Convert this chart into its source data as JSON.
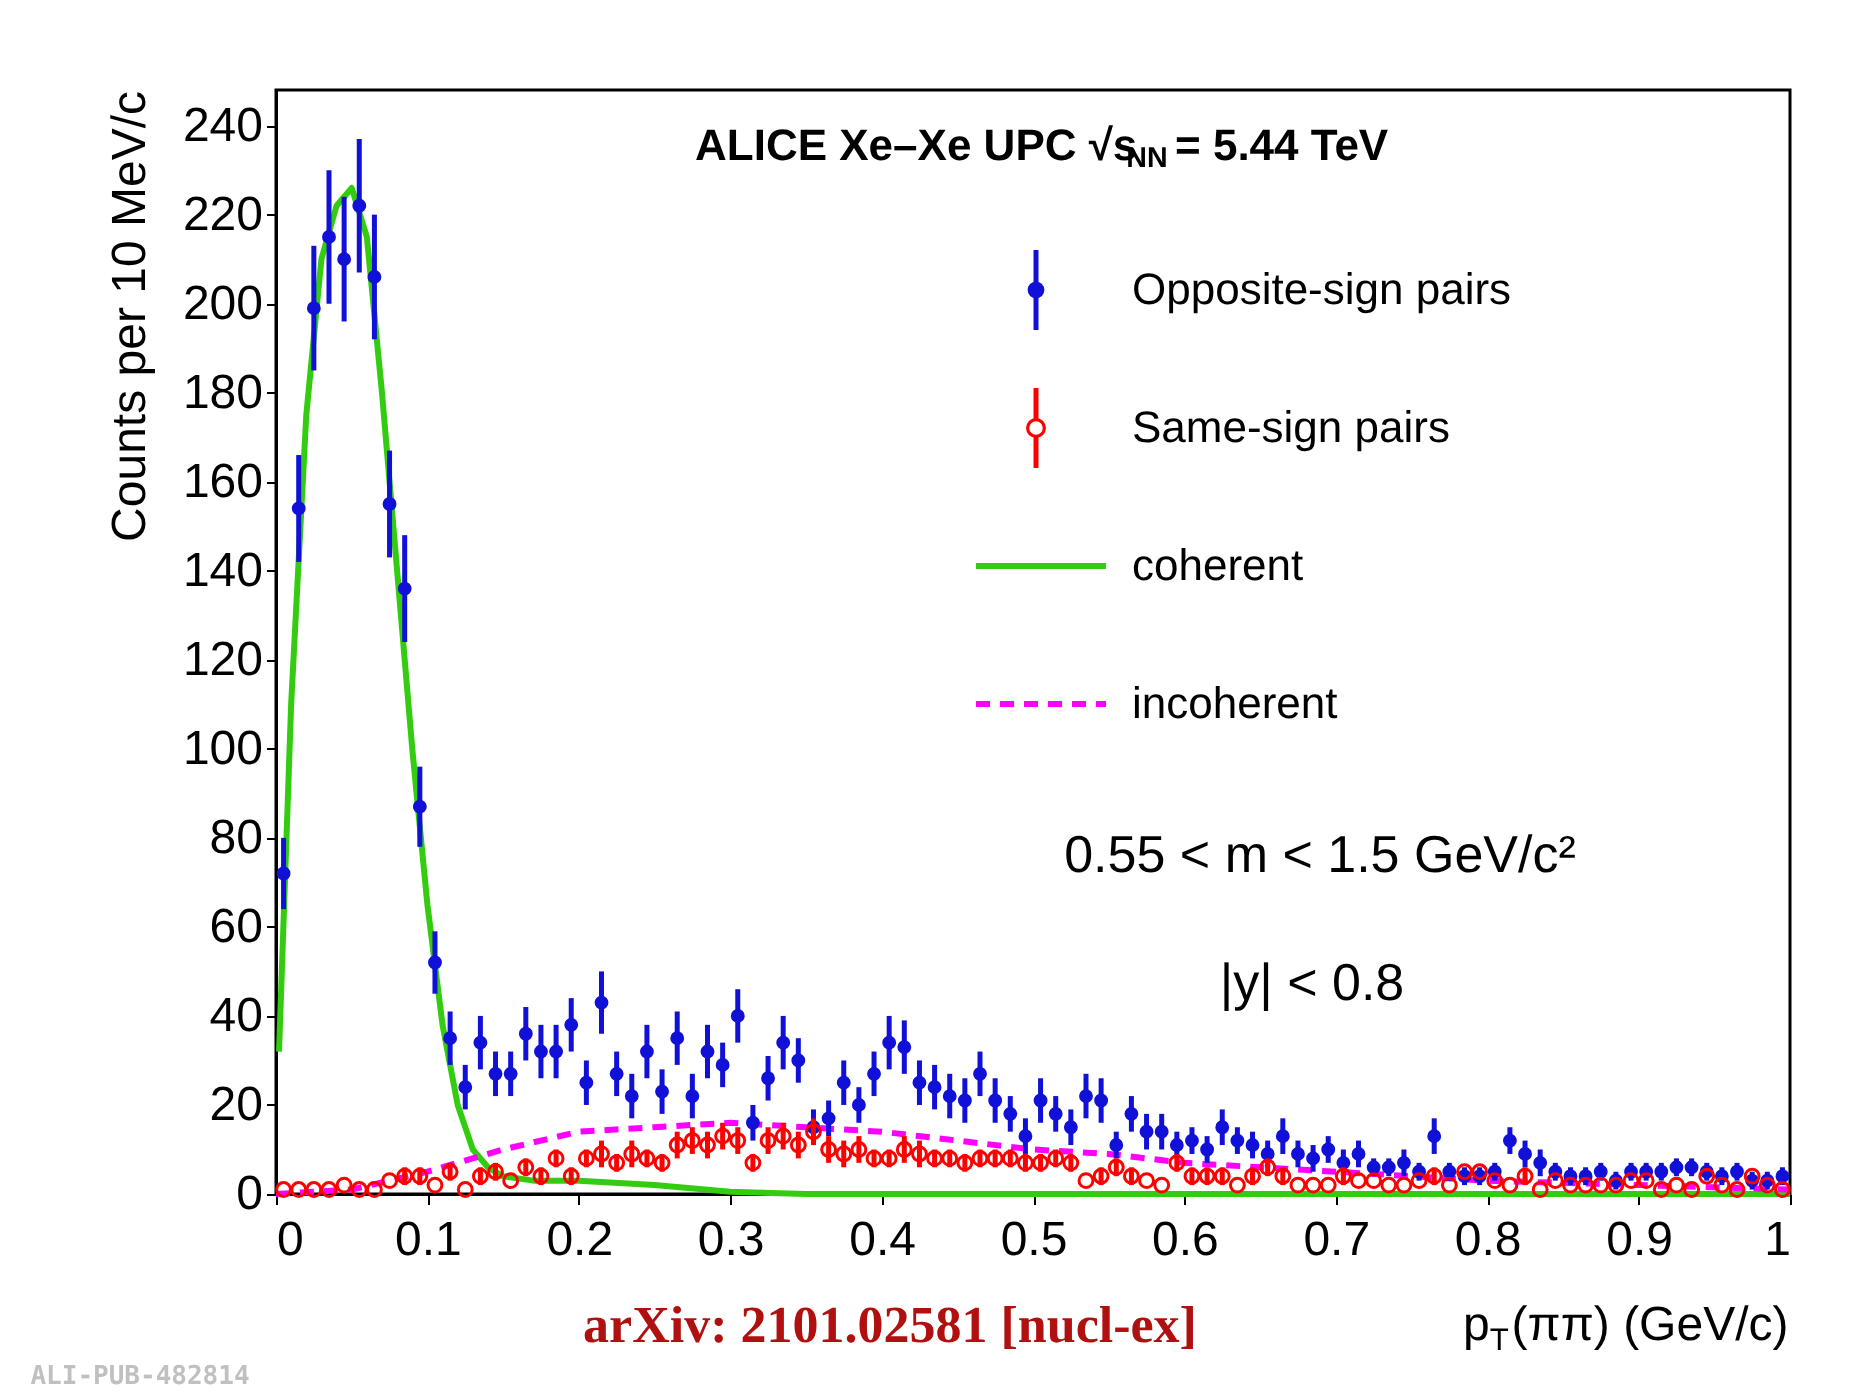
{
  "chart_data": {
    "type": "scatter",
    "title": "ALICE Xe–Xe UPC √s$_{NN}$ = 5.44 TeV",
    "xlabel": "p$_{T}$(ππ) (GeV/c)",
    "ylabel": "Counts per 10 MeV/c",
    "x": [
      0.005,
      0.015,
      0.025,
      0.035,
      0.045,
      0.055,
      0.065,
      0.075,
      0.085,
      0.095,
      0.105,
      0.115,
      0.125,
      0.135,
      0.145,
      0.155,
      0.165,
      0.175,
      0.185,
      0.195,
      0.205,
      0.215,
      0.225,
      0.235,
      0.245,
      0.255,
      0.265,
      0.275,
      0.285,
      0.295,
      0.305,
      0.315,
      0.325,
      0.335,
      0.345,
      0.355,
      0.365,
      0.375,
      0.385,
      0.395,
      0.405,
      0.415,
      0.425,
      0.435,
      0.445,
      0.455,
      0.465,
      0.475,
      0.485,
      0.495,
      0.505,
      0.515,
      0.525,
      0.535,
      0.545,
      0.555,
      0.565,
      0.575,
      0.585,
      0.595,
      0.605,
      0.615,
      0.625,
      0.635,
      0.645,
      0.655,
      0.665,
      0.675,
      0.685,
      0.695,
      0.705,
      0.715,
      0.725,
      0.735,
      0.745,
      0.755,
      0.765,
      0.775,
      0.785,
      0.795,
      0.805,
      0.815,
      0.825,
      0.835,
      0.845,
      0.855,
      0.865,
      0.875,
      0.885,
      0.895,
      0.905,
      0.915,
      0.925,
      0.935,
      0.945,
      0.955,
      0.965,
      0.975,
      0.985,
      0.995
    ],
    "series": [
      {
        "name": "Opposite-sign pairs",
        "color": "#1010d8",
        "marker": "circle",
        "values": [
          72,
          154,
          199,
          215,
          210,
          222,
          206,
          155,
          136,
          87,
          52,
          35,
          24,
          34,
          27,
          27,
          36,
          32,
          32,
          38,
          25,
          43,
          27,
          22,
          32,
          23,
          35,
          22,
          32,
          29,
          40,
          16,
          26,
          34,
          30,
          15,
          17,
          25,
          20,
          27,
          34,
          33,
          25,
          24,
          22,
          21,
          27,
          21,
          18,
          13,
          21,
          18,
          15,
          22,
          21,
          11,
          18,
          14,
          14,
          11,
          12,
          10,
          15,
          12,
          11,
          9,
          13,
          9,
          8,
          10,
          7,
          9,
          6,
          6,
          7,
          5,
          13,
          5,
          4,
          4,
          5,
          12,
          9,
          7,
          5,
          4,
          4,
          5,
          3,
          5,
          5,
          5,
          6,
          6,
          5,
          4,
          5,
          3,
          3,
          4
        ],
        "errors": [
          8,
          12,
          14,
          15,
          14,
          15,
          14,
          12,
          12,
          9,
          7,
          6,
          5,
          6,
          5,
          5,
          6,
          6,
          6,
          6,
          5,
          7,
          5,
          5,
          6,
          5,
          6,
          5,
          6,
          5,
          6,
          4,
          5,
          6,
          5,
          4,
          4,
          5,
          4,
          5,
          6,
          6,
          5,
          5,
          5,
          5,
          5,
          5,
          4,
          4,
          5,
          4,
          4,
          5,
          5,
          3,
          4,
          4,
          4,
          3,
          3,
          3,
          4,
          3,
          3,
          3,
          4,
          3,
          3,
          3,
          3,
          3,
          2,
          2,
          3,
          2,
          4,
          2,
          2,
          2,
          2,
          3,
          3,
          3,
          2,
          2,
          2,
          2,
          2,
          2,
          2,
          2,
          2,
          2,
          2,
          2,
          2,
          2,
          2,
          2
        ]
      },
      {
        "name": "Same-sign pairs",
        "color": "#ff0000",
        "marker": "circle",
        "values": [
          1,
          1,
          1,
          1,
          2,
          1,
          1,
          3,
          4,
          4,
          2,
          5,
          1,
          4,
          5,
          3,
          6,
          4,
          8,
          4,
          8,
          9,
          7,
          9,
          8,
          7,
          11,
          12,
          11,
          13,
          12,
          7,
          12,
          13,
          11,
          14,
          10,
          9,
          10,
          8,
          8,
          10,
          9,
          8,
          8,
          7,
          8,
          8,
          8,
          7,
          7,
          8,
          7,
          3,
          4,
          6,
          4,
          3,
          2,
          7,
          4,
          4,
          4,
          2,
          4,
          6,
          4,
          2,
          2,
          2,
          4,
          3,
          3,
          2,
          2,
          3,
          4,
          2,
          5,
          5,
          3,
          2,
          4,
          1,
          3,
          2,
          2,
          2,
          2,
          3,
          3,
          1,
          2,
          1,
          4,
          2,
          1,
          4,
          2,
          1
        ],
        "errors": [
          null,
          null,
          null,
          null,
          null,
          null,
          null,
          null,
          2,
          2,
          null,
          2,
          null,
          2,
          2,
          null,
          2,
          2,
          2,
          2,
          2,
          3,
          2,
          3,
          2,
          2,
          3,
          3,
          3,
          3,
          3,
          2,
          3,
          3,
          3,
          3,
          3,
          3,
          3,
          2,
          2,
          3,
          3,
          2,
          2,
          2,
          2,
          2,
          2,
          2,
          2,
          2,
          2,
          null,
          2,
          2,
          2,
          null,
          null,
          2,
          2,
          2,
          2,
          null,
          2,
          2,
          2,
          null,
          null,
          null,
          2,
          null,
          null,
          null,
          null,
          null,
          2,
          null,
          null,
          null,
          null,
          null,
          2,
          null,
          null,
          null,
          null,
          null,
          null,
          null,
          null,
          null,
          null,
          null,
          null,
          null,
          null,
          null,
          null,
          null
        ]
      },
      {
        "name": "coherent",
        "type": "line",
        "color": "#33cc11",
        "line_style": "solid",
        "x": [
          0.002,
          0.01,
          0.02,
          0.03,
          0.04,
          0.05,
          0.06,
          0.07,
          0.08,
          0.09,
          0.1,
          0.11,
          0.12,
          0.13,
          0.14,
          0.15,
          0.17,
          0.2,
          0.25,
          0.3,
          0.35,
          1.0
        ],
        "values": [
          32,
          110,
          175,
          210,
          222,
          226,
          215,
          180,
          140,
          100,
          65,
          38,
          20,
          10,
          6,
          4,
          3,
          3,
          2,
          0.5,
          0,
          0
        ]
      },
      {
        "name": "incoherent",
        "type": "line",
        "color": "#ff00ff",
        "line_style": "dashed",
        "x": [
          0,
          0.05,
          0.1,
          0.15,
          0.2,
          0.25,
          0.3,
          0.35,
          0.4,
          0.45,
          0.5,
          0.55,
          0.6,
          0.7,
          0.8,
          0.9,
          1.0
        ],
        "values": [
          0,
          1,
          5,
          10,
          14,
          15,
          16,
          15,
          14,
          12,
          10,
          9,
          7,
          5,
          3,
          2,
          1
        ]
      }
    ],
    "annotations": [
      "0.55 < m < 1.5 GeV/c²",
      "|y| < 0.8",
      "arXiv: 2101.02581 [nucl-ex]",
      "ALI-PUB-482814"
    ],
    "xlim": [
      0,
      1
    ],
    "xticks": [
      0,
      0.1,
      0.2,
      0.3,
      0.4,
      0.5,
      0.6,
      0.7,
      0.8,
      0.9,
      1
    ],
    "ylim": [
      0,
      248
    ],
    "yticks": [
      0,
      20,
      40,
      60,
      80,
      100,
      120,
      140,
      160,
      180,
      200,
      220,
      240
    ],
    "legend": "top right",
    "grid": false
  }
}
